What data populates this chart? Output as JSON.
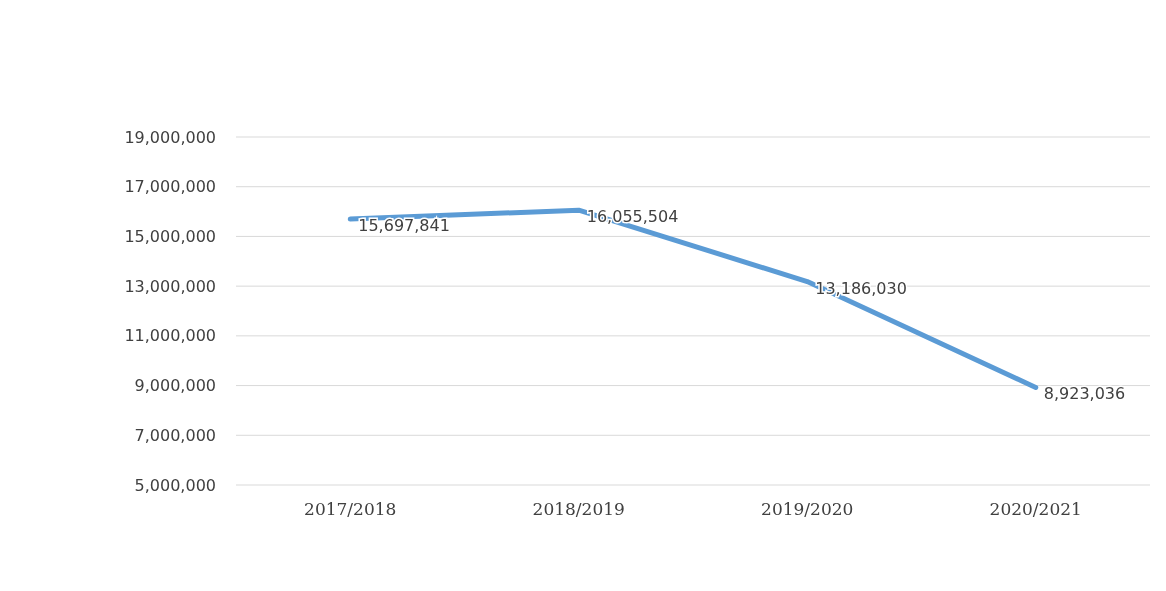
{
  "chart_data": {
    "type": "line",
    "categories": [
      "2017/2018",
      "2018/2019",
      "2019/2020",
      "2020/2021"
    ],
    "series": [
      {
        "color": "#5b9bd5",
        "values": [
          15697841,
          16055504,
          13186030,
          8923036
        ],
        "value_labels": [
          "15,697,841",
          "16,055,504",
          "13,186,030",
          "8,923,036"
        ]
      }
    ],
    "ylim": [
      5000000,
      19000000
    ],
    "yticks": [
      {
        "value": 5000000,
        "label": "5,000,000"
      },
      {
        "value": 7000000,
        "label": "7,000,000"
      },
      {
        "value": 9000000,
        "label": "9,000,000"
      },
      {
        "value": 11000000,
        "label": "11,000,000"
      },
      {
        "value": 13000000,
        "label": "13,000,000"
      },
      {
        "value": 15000000,
        "label": "15,000,000"
      },
      {
        "value": 17000000,
        "label": "17,000,000"
      },
      {
        "value": 19000000,
        "label": "19,000,000"
      }
    ],
    "grid": "y",
    "marker": "none",
    "line_style": "solid"
  }
}
